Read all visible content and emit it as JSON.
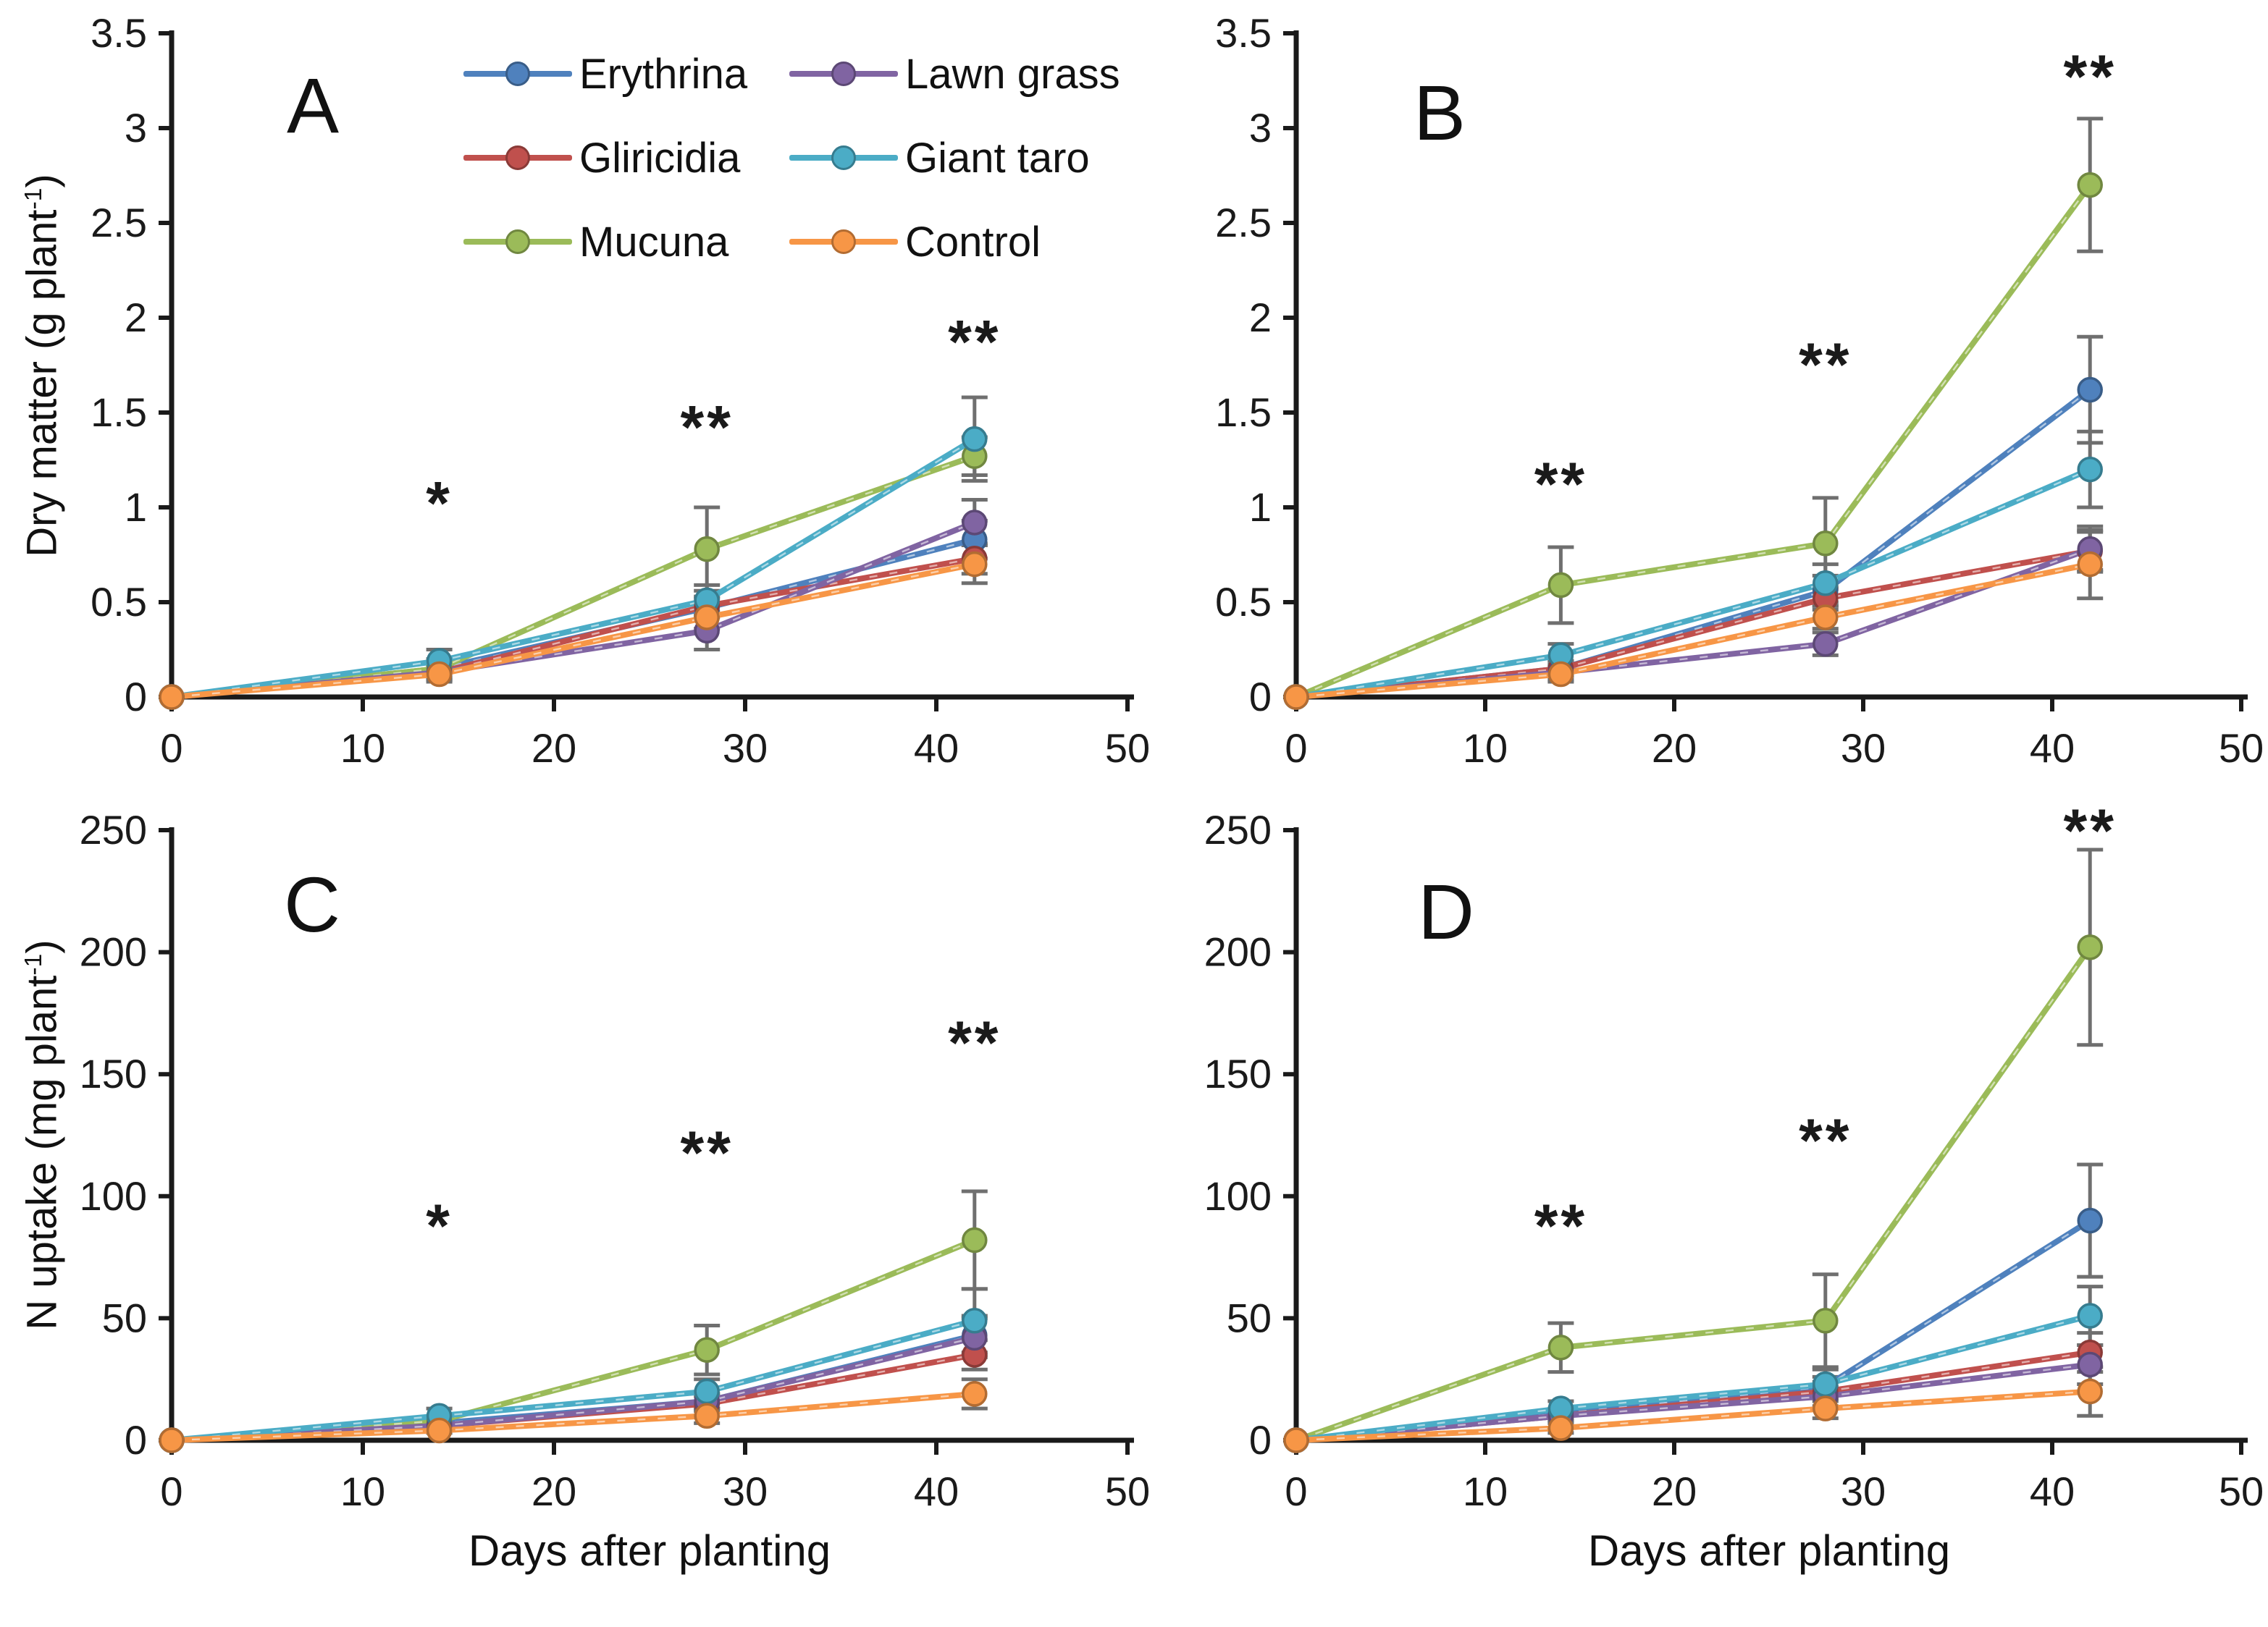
{
  "figure": {
    "background": "#ffffff",
    "axis_color": "#1a1a1a",
    "error_bar_color": "#6f6f6f",
    "significance_color": "#1a1a1a",
    "legend": {
      "items": [
        {
          "key": "erythrina",
          "label": "Erythrina",
          "color": "#4F81BD"
        },
        {
          "key": "gliricidia",
          "label": "Gliricidia",
          "color": "#C0504D"
        },
        {
          "key": "mucuna",
          "label": "Mucuna",
          "color": "#9BBB59"
        },
        {
          "key": "lawn-grass",
          "label": "Lawn grass",
          "color": "#8064A2"
        },
        {
          "key": "giant-taro",
          "label": "Giant taro",
          "color": "#4BACC6"
        },
        {
          "key": "control",
          "label": "Control",
          "color": "#F79646"
        }
      ]
    }
  },
  "chart_data": [
    {
      "id": "A",
      "type": "line",
      "panel_label": "A",
      "xlabel": "",
      "ylabel": "Dry matter (g plant⁻¹)",
      "ylabel_parts": {
        "pre": "Dry matter (g plant",
        "sup": "-1",
        "post": ")"
      },
      "x": [
        0,
        14,
        28,
        42
      ],
      "xlim": [
        0,
        50
      ],
      "ylim": [
        0,
        3.5
      ],
      "x_ticks": [
        0,
        10,
        20,
        30,
        40,
        50
      ],
      "y_ticks": [
        "0",
        "0.5",
        "1",
        "1.5",
        "2",
        "2.5",
        "3",
        "3.5"
      ],
      "grid": false,
      "legend_position": "top-inside",
      "series": [
        {
          "name": "Erythrina",
          "color": "#4F81BD",
          "values": [
            0,
            0.15,
            0.47,
            0.83
          ],
          "err": [
            0,
            0.04,
            0.05,
            0.1
          ]
        },
        {
          "name": "Gliricidia",
          "color": "#C0504D",
          "values": [
            0,
            0.13,
            0.48,
            0.73
          ],
          "err": [
            0,
            0.04,
            0.05,
            0.08
          ]
        },
        {
          "name": "Mucuna",
          "color": "#9BBB59",
          "values": [
            0,
            0.15,
            0.78,
            1.27
          ],
          "err": [
            0,
            0.05,
            0.22,
            0.1
          ]
        },
        {
          "name": "Lawn grass",
          "color": "#8064A2",
          "values": [
            0,
            0.13,
            0.35,
            0.92
          ],
          "err": [
            0,
            0.04,
            0.1,
            0.12
          ]
        },
        {
          "name": "Giant taro",
          "color": "#4BACC6",
          "values": [
            0,
            0.19,
            0.51,
            1.36
          ],
          "err": [
            0,
            0.06,
            0.08,
            0.22
          ]
        },
        {
          "name": "Control",
          "color": "#F79646",
          "values": [
            0,
            0.12,
            0.42,
            0.7
          ],
          "err": [
            0,
            0.04,
            0.06,
            0.1
          ]
        }
      ],
      "significance": [
        {
          "x": 14,
          "y": 1.05,
          "label": "*"
        },
        {
          "x": 28,
          "y": 1.45,
          "label": "**"
        },
        {
          "x": 42,
          "y": 1.9,
          "label": "**"
        }
      ]
    },
    {
      "id": "B",
      "type": "line",
      "panel_label": "B",
      "xlabel": "",
      "ylabel": "",
      "ylabel_parts": {
        "pre": "",
        "sup": "",
        "post": ""
      },
      "x": [
        0,
        14,
        28,
        42
      ],
      "xlim": [
        0,
        50
      ],
      "ylim": [
        0,
        3.5
      ],
      "x_ticks": [
        0,
        10,
        20,
        30,
        40,
        50
      ],
      "y_ticks": [
        "0",
        "0.5",
        "1",
        "1.5",
        "2",
        "2.5",
        "3",
        "3.5"
      ],
      "grid": false,
      "legend_position": "none",
      "series": [
        {
          "name": "Erythrina",
          "color": "#4F81BD",
          "values": [
            0,
            0.15,
            0.56,
            1.62
          ],
          "err": [
            0,
            0.04,
            0.08,
            0.28
          ]
        },
        {
          "name": "Gliricidia",
          "color": "#C0504D",
          "values": [
            0,
            0.15,
            0.52,
            0.77
          ],
          "err": [
            0,
            0.04,
            0.06,
            0.1
          ]
        },
        {
          "name": "Mucuna",
          "color": "#9BBB59",
          "values": [
            0,
            0.59,
            0.81,
            2.7
          ],
          "err": [
            0,
            0.2,
            0.24,
            0.35
          ]
        },
        {
          "name": "Lawn grass",
          "color": "#8064A2",
          "values": [
            0,
            0.13,
            0.28,
            0.78
          ],
          "err": [
            0,
            0.04,
            0.06,
            0.12
          ]
        },
        {
          "name": "Giant taro",
          "color": "#4BACC6",
          "values": [
            0,
            0.22,
            0.6,
            1.2
          ],
          "err": [
            0,
            0.06,
            0.1,
            0.2
          ]
        },
        {
          "name": "Control",
          "color": "#F79646",
          "values": [
            0,
            0.12,
            0.42,
            0.7
          ],
          "err": [
            0,
            0.04,
            0.06,
            0.18
          ]
        }
      ],
      "significance": [
        {
          "x": 14,
          "y": 1.15,
          "label": "**"
        },
        {
          "x": 28,
          "y": 1.78,
          "label": "**"
        },
        {
          "x": 42,
          "y": 3.3,
          "label": "**"
        }
      ]
    },
    {
      "id": "C",
      "type": "line",
      "panel_label": "C",
      "xlabel": "Days after planting",
      "ylabel": "N uptake (mg plant⁻¹)",
      "ylabel_parts": {
        "pre": "N uptake (mg plant",
        "sup": "-1",
        "post": ")"
      },
      "x": [
        0,
        14,
        28,
        42
      ],
      "xlim": [
        0,
        50
      ],
      "ylim": [
        0,
        250
      ],
      "x_ticks": [
        0,
        10,
        20,
        30,
        40,
        50
      ],
      "y_ticks": [
        "0",
        "50",
        "100",
        "150",
        "200",
        "250"
      ],
      "grid": false,
      "legend_position": "none",
      "series": [
        {
          "name": "Erythrina",
          "color": "#4F81BD",
          "values": [
            0,
            7,
            16,
            43
          ],
          "err": [
            0,
            2,
            3,
            8
          ]
        },
        {
          "name": "Gliricidia",
          "color": "#C0504D",
          "values": [
            0,
            6,
            15,
            35
          ],
          "err": [
            0,
            2,
            3,
            6
          ]
        },
        {
          "name": "Mucuna",
          "color": "#9BBB59",
          "values": [
            0,
            8,
            37,
            82
          ],
          "err": [
            0,
            2,
            10,
            20
          ]
        },
        {
          "name": "Lawn grass",
          "color": "#8064A2",
          "values": [
            0,
            6,
            16,
            42
          ],
          "err": [
            0,
            2,
            3,
            8
          ]
        },
        {
          "name": "Giant taro",
          "color": "#4BACC6",
          "values": [
            0,
            10,
            20,
            49
          ],
          "err": [
            0,
            3,
            5,
            13
          ]
        },
        {
          "name": "Control",
          "color": "#F79646",
          "values": [
            0,
            4,
            10,
            19
          ],
          "err": [
            0,
            1,
            3,
            6
          ]
        }
      ],
      "significance": [
        {
          "x": 14,
          "y": 90,
          "label": "*"
        },
        {
          "x": 28,
          "y": 120,
          "label": "**"
        },
        {
          "x": 42,
          "y": 165,
          "label": "**"
        }
      ]
    },
    {
      "id": "D",
      "type": "line",
      "panel_label": "D",
      "xlabel": "Days after planting",
      "ylabel": "",
      "ylabel_parts": {
        "pre": "",
        "sup": "",
        "post": ""
      },
      "x": [
        0,
        14,
        28,
        42
      ],
      "xlim": [
        0,
        50
      ],
      "ylim": [
        0,
        250
      ],
      "x_ticks": [
        0,
        10,
        20,
        30,
        40,
        50
      ],
      "y_ticks": [
        "0",
        "50",
        "100",
        "150",
        "200",
        "250"
      ],
      "grid": false,
      "legend_position": "none",
      "series": [
        {
          "name": "Erythrina",
          "color": "#4F81BD",
          "values": [
            0,
            11,
            22,
            90
          ],
          "err": [
            0,
            2,
            4,
            23
          ]
        },
        {
          "name": "Gliricidia",
          "color": "#C0504D",
          "values": [
            0,
            10,
            20,
            36
          ],
          "err": [
            0,
            2,
            4,
            8
          ]
        },
        {
          "name": "Mucuna",
          "color": "#9BBB59",
          "values": [
            0,
            38,
            49,
            202
          ],
          "err": [
            0,
            10,
            19,
            40
          ]
        },
        {
          "name": "Lawn grass",
          "color": "#8064A2",
          "values": [
            0,
            10,
            18,
            31
          ],
          "err": [
            0,
            2,
            4,
            8
          ]
        },
        {
          "name": "Giant taro",
          "color": "#4BACC6",
          "values": [
            0,
            13,
            23,
            51
          ],
          "err": [
            0,
            3,
            6,
            12
          ]
        },
        {
          "name": "Control",
          "color": "#F79646",
          "values": [
            0,
            5,
            13,
            20
          ],
          "err": [
            0,
            2,
            4,
            10
          ]
        }
      ],
      "significance": [
        {
          "x": 14,
          "y": 90,
          "label": "**"
        },
        {
          "x": 28,
          "y": 125,
          "label": "**"
        },
        {
          "x": 42,
          "y": 252,
          "label": "**"
        }
      ]
    }
  ]
}
